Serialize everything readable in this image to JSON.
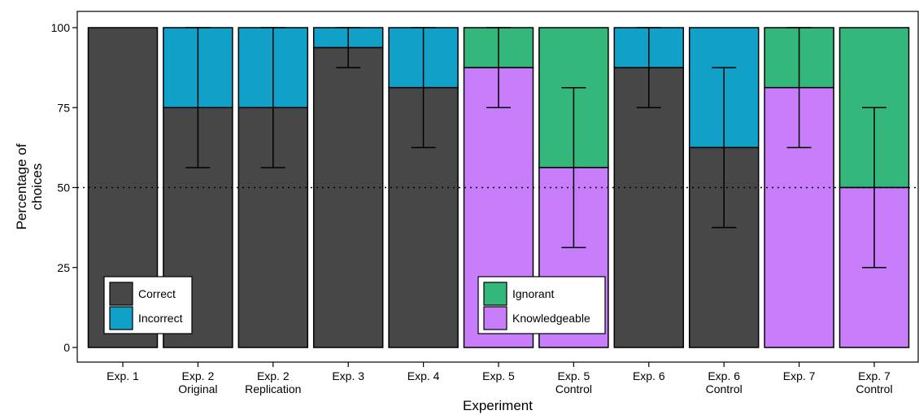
{
  "chart_data": {
    "type": "bar",
    "stacked": true,
    "xlabel": "Experiment",
    "ylabel": [
      "Percentage of",
      "choices"
    ],
    "ylim": [
      0,
      100
    ],
    "yticks": [
      "0",
      "25",
      "50",
      "75",
      "100"
    ],
    "reference_line": {
      "y": 50,
      "style": "dotted"
    },
    "grid": false,
    "categories": [
      [
        "Exp. 1"
      ],
      [
        "Exp. 2",
        "Original"
      ],
      [
        "Exp. 2",
        "Replication"
      ],
      [
        "Exp. 3"
      ],
      [
        "Exp. 4"
      ],
      [
        "Exp. 5"
      ],
      [
        "Exp. 5",
        "Control"
      ],
      [
        "Exp. 6"
      ],
      [
        "Exp. 6",
        "Control"
      ],
      [
        "Exp. 7"
      ],
      [
        "Exp. 7",
        "Control"
      ]
    ],
    "bars": [
      {
        "bottom_series": "Correct",
        "bottom_value": 100,
        "top_series": "Incorrect",
        "error": null
      },
      {
        "bottom_series": "Correct",
        "bottom_value": 75,
        "top_series": "Incorrect",
        "error": [
          56.25,
          100
        ]
      },
      {
        "bottom_series": "Correct",
        "bottom_value": 75,
        "top_series": "Incorrect",
        "error": [
          56.25,
          100
        ]
      },
      {
        "bottom_series": "Correct",
        "bottom_value": 93.75,
        "top_series": "Incorrect",
        "error": [
          87.5,
          100
        ]
      },
      {
        "bottom_series": "Correct",
        "bottom_value": 81.25,
        "top_series": "Incorrect",
        "error": [
          62.5,
          100
        ]
      },
      {
        "bottom_series": "Knowledgeable",
        "bottom_value": 87.5,
        "top_series": "Ignorant",
        "error": [
          75,
          100
        ]
      },
      {
        "bottom_series": "Knowledgeable",
        "bottom_value": 56.25,
        "top_series": "Ignorant",
        "error": [
          31.25,
          81.25
        ]
      },
      {
        "bottom_series": "Correct",
        "bottom_value": 87.5,
        "top_series": "Incorrect",
        "error": [
          75,
          100
        ]
      },
      {
        "bottom_series": "Correct",
        "bottom_value": 62.5,
        "top_series": "Incorrect",
        "error": [
          37.5,
          87.5
        ]
      },
      {
        "bottom_series": "Knowledgeable",
        "bottom_value": 81.25,
        "top_series": "Ignorant",
        "error": [
          62.5,
          100
        ]
      },
      {
        "bottom_series": "Knowledgeable",
        "bottom_value": 50,
        "top_series": "Ignorant",
        "error": [
          25,
          75
        ]
      }
    ],
    "colors": {
      "Correct": "#474747",
      "Incorrect": "#10a0c8",
      "Ignorant": "#34b77a",
      "Knowledgeable": "#c87dfb"
    },
    "legends": [
      {
        "placement": "bottom-left",
        "entries": [
          "Correct",
          "Incorrect"
        ]
      },
      {
        "placement": "bottom-center-right",
        "entries": [
          "Ignorant",
          "Knowledgeable"
        ]
      }
    ]
  }
}
